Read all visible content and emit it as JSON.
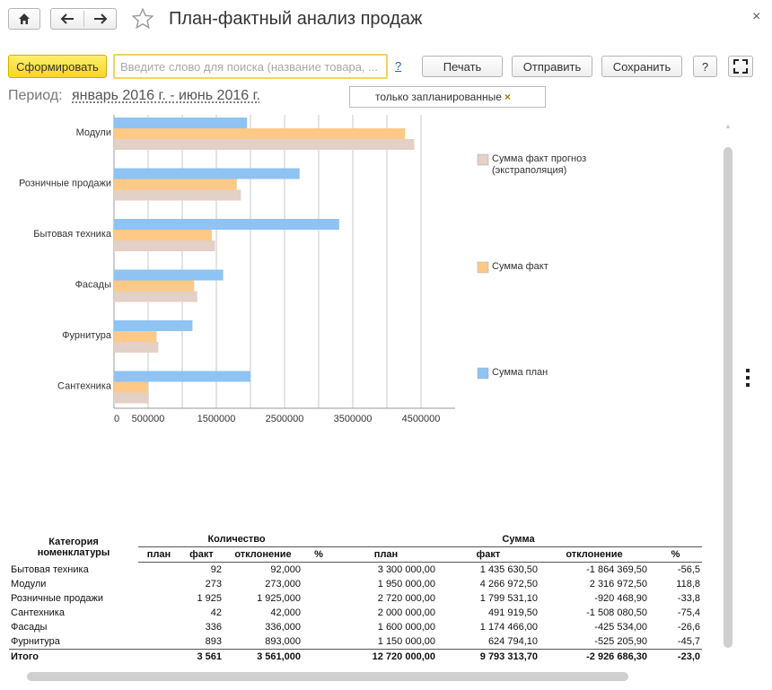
{
  "window": {
    "title": "План-фактный анализ продаж",
    "close_glyph": "×"
  },
  "toolbar": {
    "generate_label": "Сформировать",
    "search_placeholder": "Введите слово для поиска (название товара, ...",
    "help_link": "?",
    "print_label": "Печать",
    "send_label": "Отправить",
    "save_label": "Сохранить",
    "help_label": "?"
  },
  "filters": {
    "period_label": "Период:",
    "period_value": "январь 2016 г. - июнь 2016 г.",
    "tag_label": "только запланированные",
    "tag_remove": "×"
  },
  "icons": {
    "home": "home-icon",
    "back": "arrow-left-icon",
    "forward": "arrow-right-icon",
    "favorite": "star-icon",
    "fullscreen": "fullscreen-icon",
    "more": "kebab-icon"
  },
  "colors": {
    "plan": "#8ec3f3",
    "fact": "#fdc986",
    "forecast": "#e3d0c6",
    "accent": "#f5d52e"
  },
  "chart_data": {
    "type": "bar",
    "orientation": "horizontal",
    "categories": [
      "Модули",
      "Розничные продажи",
      "Бытовая техника",
      "Фасады",
      "Фурнитура",
      "Сантехника"
    ],
    "series": [
      {
        "name": "Сумма план",
        "color": "#8ec3f3",
        "values": [
          1950000,
          2720000,
          3300000,
          1600000,
          1150000,
          2000000
        ]
      },
      {
        "name": "Сумма факт",
        "color": "#fdc986",
        "values": [
          4266972.5,
          1799531.1,
          1435630.5,
          1174466,
          624794.1,
          491919.5
        ]
      },
      {
        "name": "Сумма факт прогноз (экстраполяция)",
        "color": "#e3d0c6",
        "values": [
          4400000,
          1860000,
          1480000,
          1220000,
          650000,
          510000
        ]
      }
    ],
    "x_ticks": [
      "0",
      "500000",
      "1500000",
      "2500000",
      "3500000",
      "4500000"
    ],
    "xlim": [
      0,
      5000000
    ],
    "grid": true,
    "legend_position": "right",
    "legend_order": [
      "Сумма факт прогноз (экстраполяция)",
      "Сумма факт",
      "Сумма план"
    ]
  },
  "table": {
    "header_category": [
      "Категория",
      "номенклатуры"
    ],
    "group_quantity": "Количество",
    "group_sum": "Сумма",
    "subheaders": [
      "план",
      "факт",
      "отклонение",
      "%",
      "план",
      "факт",
      "отклонение",
      "%"
    ],
    "rows": [
      [
        "Бытовая техника",
        "",
        "92",
        "92,000",
        "",
        "3 300 000,00",
        "1 435 630,50",
        "-1 864 369,50",
        "-56,5"
      ],
      [
        "Модули",
        "",
        "273",
        "273,000",
        "",
        "1 950 000,00",
        "4 266 972,50",
        "2 316 972,50",
        "118,8"
      ],
      [
        "Розничные продажи",
        "",
        "1 925",
        "1 925,000",
        "",
        "2 720 000,00",
        "1 799 531,10",
        "-920 468,90",
        "-33,8"
      ],
      [
        "Сантехника",
        "",
        "42",
        "42,000",
        "",
        "2 000 000,00",
        "491 919,50",
        "-1 508 080,50",
        "-75,4"
      ],
      [
        "Фасады",
        "",
        "336",
        "336,000",
        "",
        "1 600 000,00",
        "1 174 466,00",
        "-425 534,00",
        "-26,6"
      ],
      [
        "Фурнитура",
        "",
        "893",
        "893,000",
        "",
        "1 150 000,00",
        "624 794,10",
        "-525 205,90",
        "-45,7"
      ]
    ],
    "total": [
      "Итого",
      "",
      "3 561",
      "3 561,000",
      "",
      "12 720 000,00",
      "9 793 313,70",
      "-2 926 686,30",
      "-23,0"
    ]
  }
}
